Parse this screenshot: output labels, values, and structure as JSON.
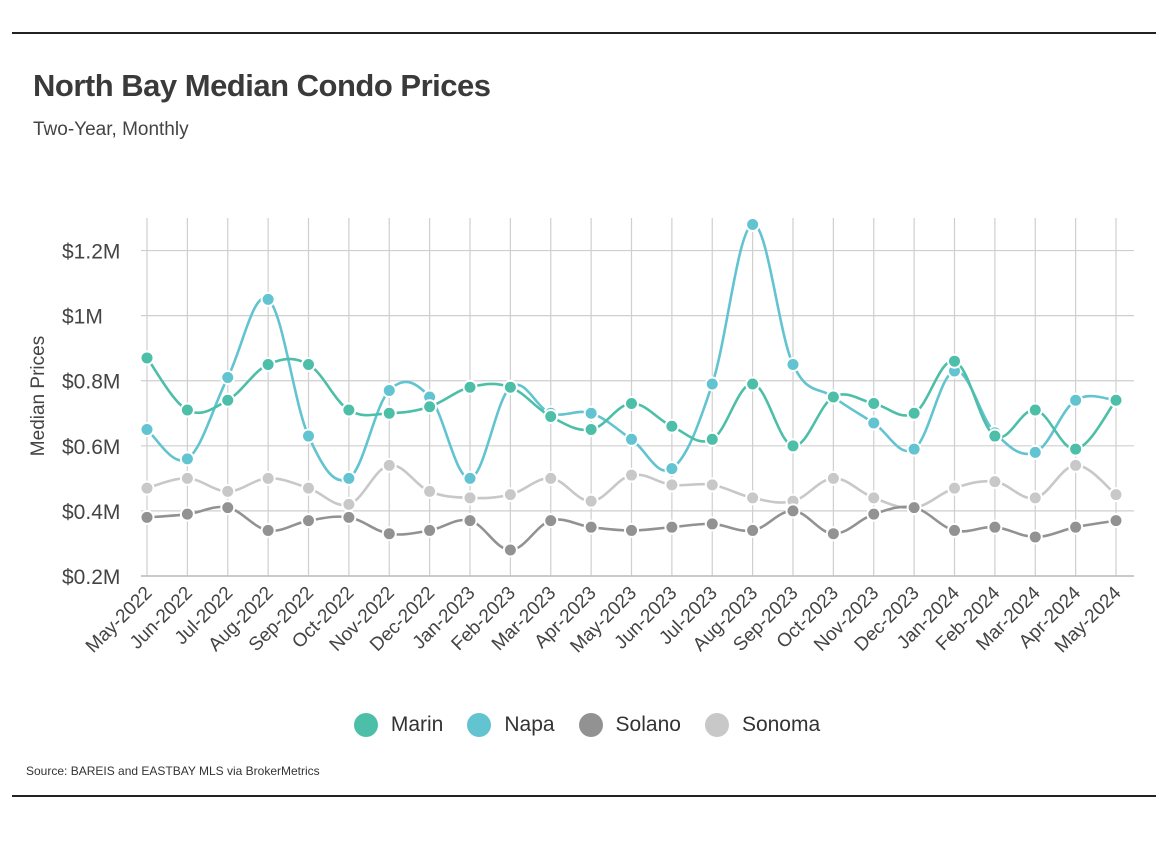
{
  "header": {
    "title": "North Bay Median Condo Prices",
    "subtitle": "Two-Year, Monthly"
  },
  "footer": {
    "source": "Source:  BAREIS and EASTBAY MLS via BrokerMetrics"
  },
  "chart_data": {
    "type": "line",
    "title": "North Bay Median Condo Prices",
    "subtitle": "Two-Year, Monthly",
    "ylabel": "Median Prices",
    "xlabel": "",
    "ylim": [
      0.2,
      1.3
    ],
    "grid": true,
    "legend": "bottom",
    "y_ticks": [
      {
        "value": 0.2,
        "label": "$0.2M"
      },
      {
        "value": 0.4,
        "label": "$0.4M"
      },
      {
        "value": 0.6,
        "label": "$0.6M"
      },
      {
        "value": 0.8,
        "label": "$0.8M"
      },
      {
        "value": 1.0,
        "label": "$1M"
      },
      {
        "value": 1.2,
        "label": "$1.2M"
      }
    ],
    "categories": [
      "May-2022",
      "Jun-2022",
      "Jul-2022",
      "Aug-2022",
      "Sep-2022",
      "Oct-2022",
      "Nov-2022",
      "Dec-2022",
      "Jan-2023",
      "Feb-2023",
      "Mar-2023",
      "Apr-2023",
      "May-2023",
      "Jun-2023",
      "Jul-2023",
      "Aug-2023",
      "Sep-2023",
      "Oct-2023",
      "Nov-2023",
      "Dec-2023",
      "Jan-2024",
      "Feb-2024",
      "Mar-2024",
      "Apr-2024",
      "May-2024"
    ],
    "series": [
      {
        "name": "Marin",
        "color": "#4dbfa8",
        "values": [
          0.87,
          0.71,
          0.74,
          0.85,
          0.85,
          0.71,
          0.7,
          0.72,
          0.78,
          0.78,
          0.69,
          0.65,
          0.73,
          0.66,
          0.62,
          0.79,
          0.6,
          0.75,
          0.73,
          0.7,
          0.86,
          0.63,
          0.71,
          0.59,
          0.74
        ]
      },
      {
        "name": "Napa",
        "color": "#62c3d1",
        "values": [
          0.65,
          0.56,
          0.81,
          1.05,
          0.63,
          0.5,
          0.77,
          0.75,
          0.5,
          0.78,
          0.7,
          0.7,
          0.62,
          0.53,
          0.79,
          1.28,
          0.85,
          0.75,
          0.67,
          0.59,
          0.83,
          0.64,
          0.58,
          0.74,
          0.74
        ]
      },
      {
        "name": "Solano",
        "color": "#929292",
        "values": [
          0.38,
          0.39,
          0.41,
          0.34,
          0.37,
          0.38,
          0.33,
          0.34,
          0.37,
          0.28,
          0.37,
          0.35,
          0.34,
          0.35,
          0.36,
          0.34,
          0.4,
          0.33,
          0.39,
          0.41,
          0.34,
          0.35,
          0.32,
          0.35,
          0.37
        ]
      },
      {
        "name": "Sonoma",
        "color": "#c8c8c8",
        "values": [
          0.47,
          0.5,
          0.46,
          0.5,
          0.47,
          0.42,
          0.54,
          0.46,
          0.44,
          0.45,
          0.5,
          0.43,
          0.51,
          0.48,
          0.48,
          0.44,
          0.43,
          0.5,
          0.44,
          0.41,
          0.47,
          0.49,
          0.44,
          0.54,
          0.45
        ]
      }
    ]
  }
}
